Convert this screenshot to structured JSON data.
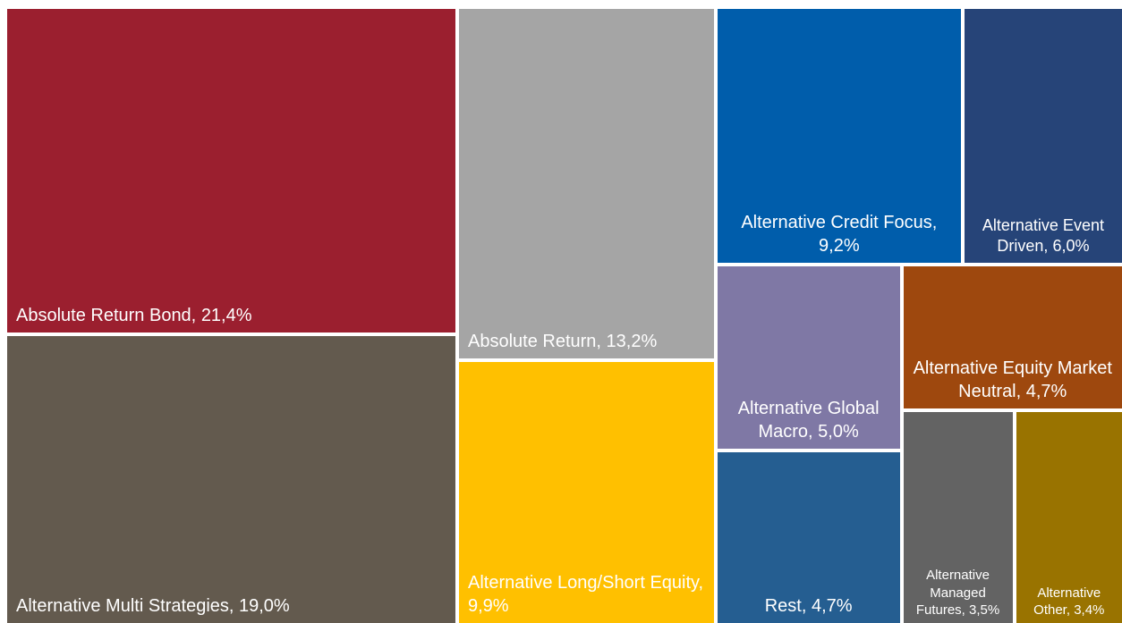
{
  "chart_data": {
    "type": "treemap",
    "categories": [
      "Absolute Return Bond,",
      "Alternative Multi Strategies,",
      "Absolute Return,",
      "Alternative Long/Short Equity,",
      "Alternative Credit Focus,",
      "Alternative Event Driven,",
      "Alternative Global Macro,",
      "Alternative Equity Market Neutral,",
      "Rest,",
      "Alternative Managed Futures,",
      "Alternative Other,"
    ],
    "values": [
      21.4,
      19.0,
      13.2,
      9.9,
      9.2,
      6.0,
      5.0,
      4.7,
      4.7,
      3.5,
      3.4
    ],
    "value_labels": [
      "21,4%",
      "19,0%",
      "13,2%",
      "9,9%",
      "9,2%",
      "6,0%",
      "5,0%",
      "4,7%",
      "4,7%",
      "3,5%",
      "3,4%"
    ],
    "colors": [
      "#9b1f2f",
      "#635a4e",
      "#a5a5a5",
      "#ffc000",
      "#005dab",
      "#264478",
      "#7f78a5",
      "#9e480e",
      "#255e91",
      "#636363",
      "#997300"
    ]
  }
}
